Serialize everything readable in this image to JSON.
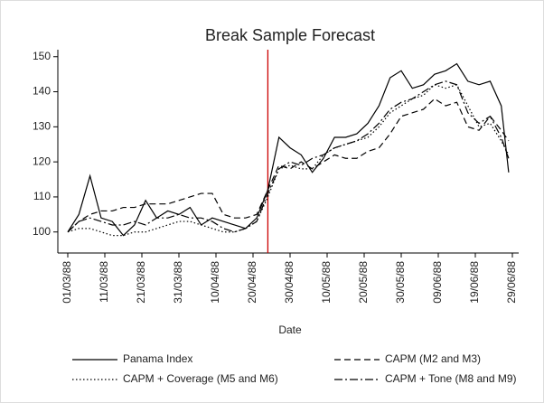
{
  "chart_data": {
    "type": "line",
    "title": "Break Sample Forecast",
    "x_label": "Date",
    "x": [
      "01/03/88",
      "04/03/88",
      "07/03/88",
      "10/03/88",
      "13/03/88",
      "16/03/88",
      "19/03/88",
      "22/03/88",
      "25/03/88",
      "28/03/88",
      "31/03/88",
      "03/04/88",
      "06/04/88",
      "09/04/88",
      "12/04/88",
      "15/04/88",
      "18/04/88",
      "21/04/88",
      "24/04/88",
      "27/04/88",
      "30/04/88",
      "03/05/88",
      "06/05/88",
      "09/05/88",
      "12/05/88",
      "15/05/88",
      "18/05/88",
      "21/05/88",
      "24/05/88",
      "27/05/88",
      "30/05/88",
      "02/06/88",
      "05/06/88",
      "08/06/88",
      "11/06/88",
      "14/06/88",
      "17/06/88",
      "20/06/88",
      "23/06/88",
      "26/06/88",
      "28/06/88"
    ],
    "series": [
      {
        "name": "Panama Index",
        "color": "#000000",
        "dash": "",
        "values": [
          100,
          105,
          116,
          104,
          103,
          99,
          102,
          109,
          104,
          106,
          105,
          107,
          102,
          104,
          103,
          102,
          101,
          104,
          112,
          127,
          124,
          122,
          117,
          121,
          127,
          127,
          128,
          131,
          136,
          144,
          146,
          141,
          142,
          145,
          146,
          148,
          143,
          142,
          143,
          136,
          117
        ]
      },
      {
        "name": "CAPM (M2 and M3)",
        "color": "#000000",
        "dash": "7 4",
        "values": [
          100,
          103,
          105,
          106,
          106,
          107,
          107,
          108,
          108,
          108,
          109,
          110,
          111,
          111,
          105,
          104,
          104,
          105,
          112,
          119,
          118,
          120,
          118,
          120,
          122,
          121,
          121,
          123,
          124,
          128,
          133,
          134,
          135,
          138,
          136,
          137,
          130,
          129,
          133,
          129,
          126
        ]
      },
      {
        "name": "CAPM + Coverage (M5 and M6)",
        "color": "#000000",
        "dash": "1.5 2.5",
        "values": [
          100,
          101,
          101,
          100,
          99,
          99,
          100,
          100,
          101,
          102,
          103,
          103,
          102,
          101,
          100,
          100,
          101,
          103,
          110,
          118,
          119,
          118,
          118,
          122,
          124,
          125,
          126,
          127,
          130,
          134,
          136,
          138,
          139,
          142,
          141,
          142,
          136,
          130,
          131,
          126,
          122
        ]
      },
      {
        "name": "CAPM + Tone (M8 and M9)",
        "color": "#000000",
        "dash": "9 3 2 3",
        "values": [
          100,
          103,
          104,
          103,
          102,
          102,
          103,
          102,
          104,
          104,
          105,
          104,
          104,
          103,
          101,
          100,
          101,
          103,
          111,
          118,
          120,
          119,
          121,
          122,
          124,
          125,
          126,
          128,
          131,
          135,
          137,
          138,
          140,
          142,
          143,
          142,
          134,
          131,
          133,
          127,
          121
        ]
      }
    ],
    "break_date": "24/04/88",
    "break_color": "#cc0000",
    "xlim": [
      "01/03/88",
      "29/06/88"
    ],
    "xticks": [
      "01/03/88",
      "11/03/88",
      "21/03/88",
      "31/03/88",
      "10/04/88",
      "20/04/88",
      "30/04/88",
      "10/05/88",
      "20/05/88",
      "30/05/88",
      "09/06/88",
      "19/06/88",
      "29/06/88"
    ],
    "ylim": [
      94,
      152
    ],
    "yticks": [
      100,
      110,
      120,
      130,
      140,
      150
    ]
  }
}
